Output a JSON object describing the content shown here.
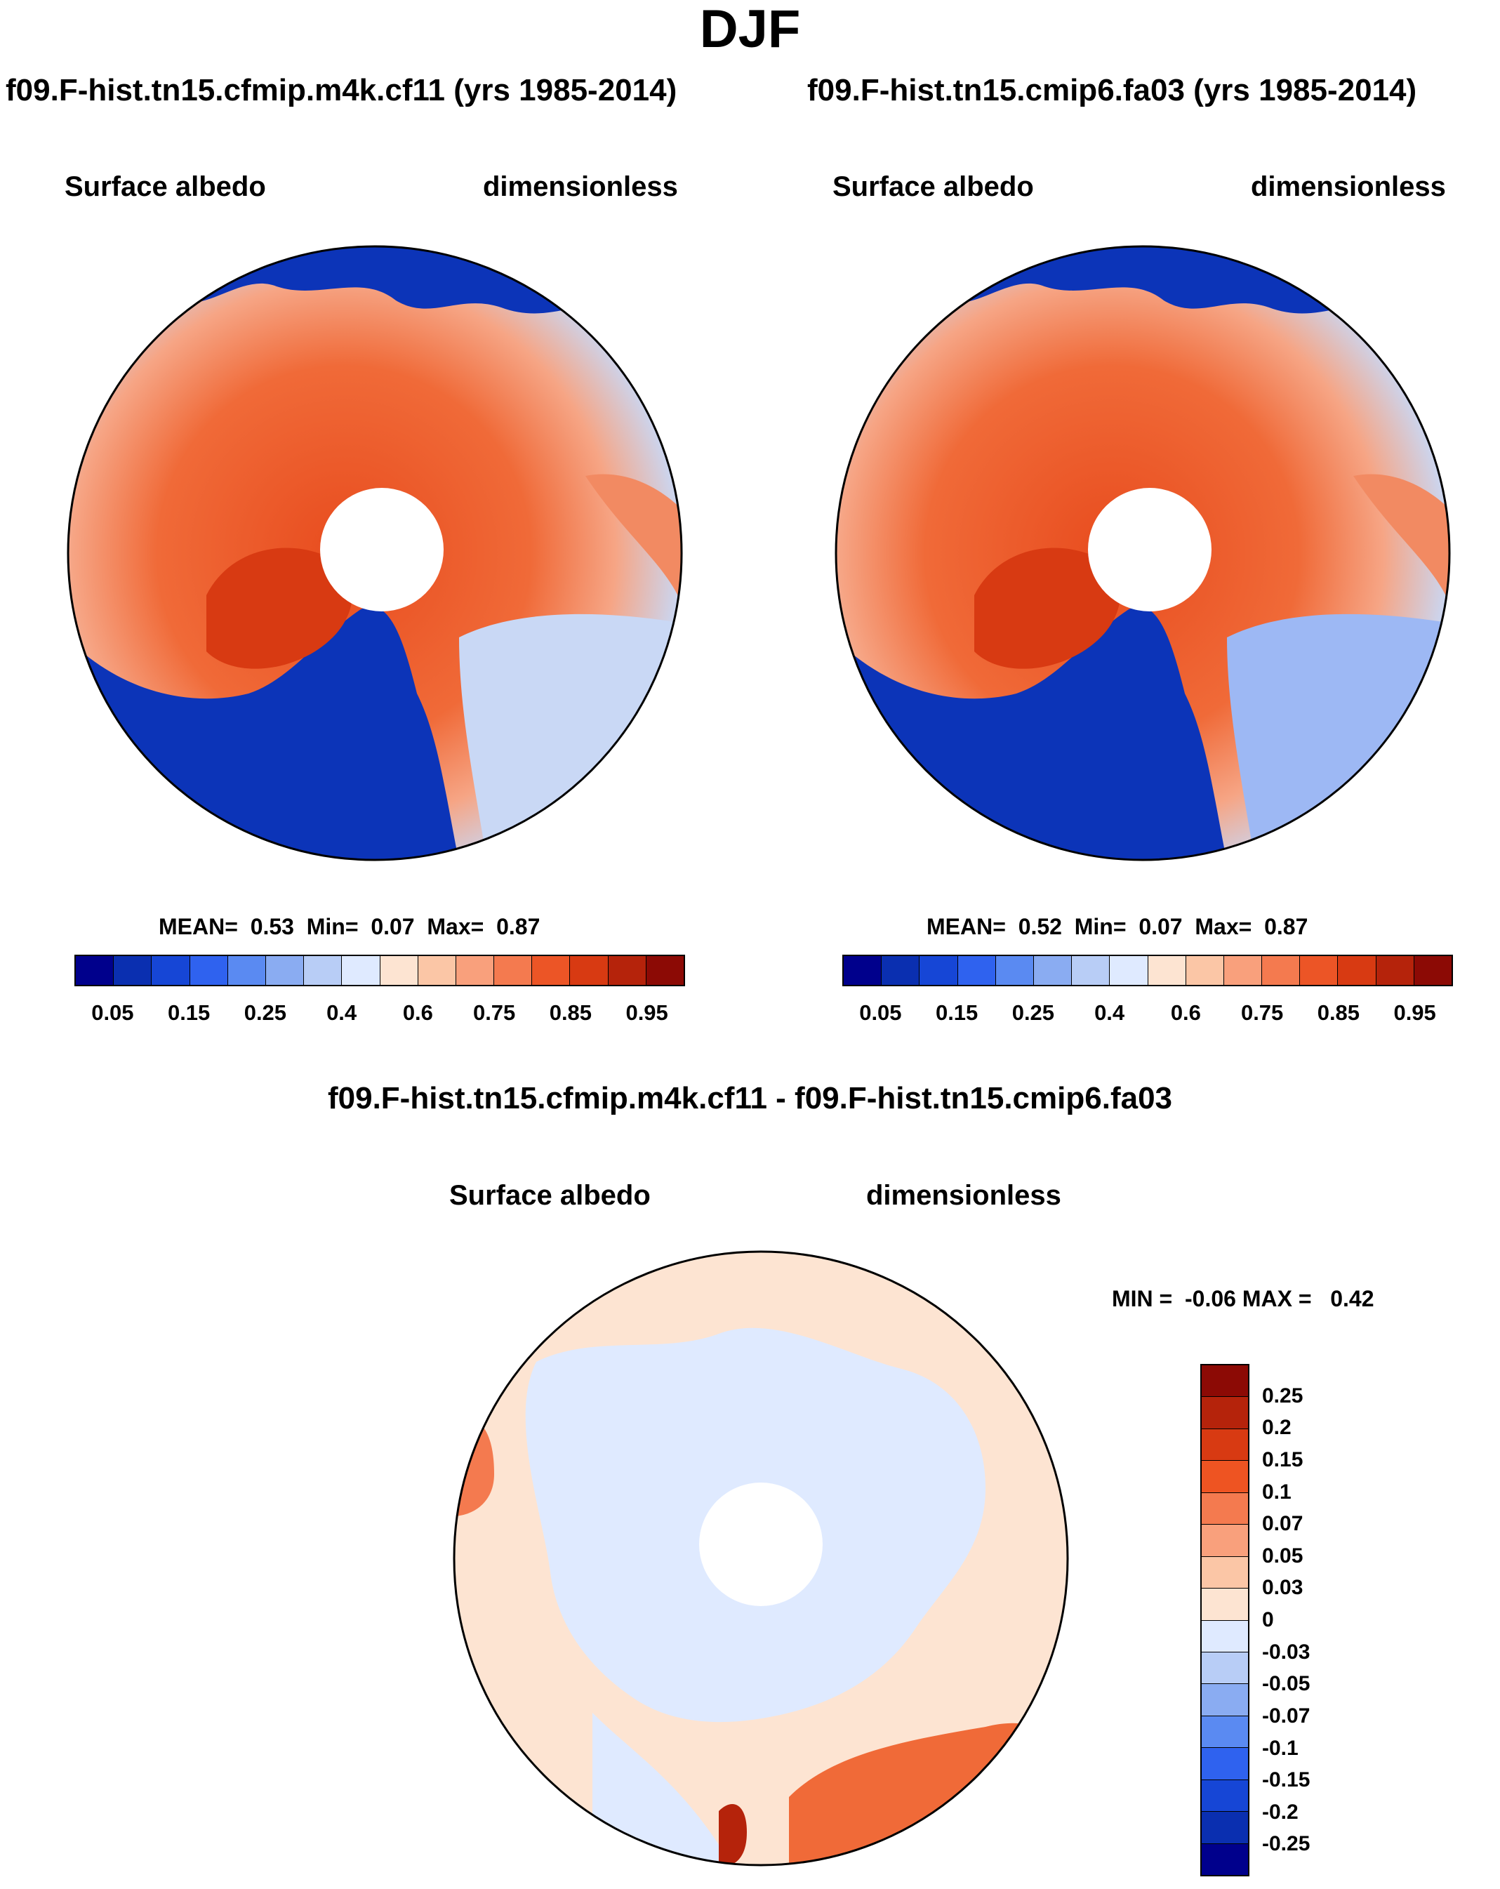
{
  "figure": {
    "title": "DJF"
  },
  "panels": [
    {
      "title": "f09.F-hist.tn15.cfmip.m4k.cf11 (yrs 1985-2014)",
      "left_label": "Surface albedo",
      "right_label": "dimensionless",
      "stats": "MEAN=  0.53  Min=  0.07  Max=  0.87"
    },
    {
      "title": "f09.F-hist.tn15.cmip6.fa03 (yrs 1985-2014)",
      "left_label": "Surface albedo",
      "right_label": "dimensionless",
      "stats": "MEAN=  0.52  Min=  0.07  Max=  0.87"
    },
    {
      "title": "f09.F-hist.tn15.cfmip.m4k.cf11 - f09.F-hist.tn15.cmip6.fa03",
      "left_label": "Surface albedo",
      "right_label": "dimensionless",
      "stats": "MIN =  -0.06 MAX =   0.42"
    }
  ],
  "colorbars": {
    "abs_colors": [
      "#00008c",
      "#0a2fb0",
      "#1646d6",
      "#2f62ef",
      "#5a8af2",
      "#8aacf2",
      "#b8cdf6",
      "#dfeaff",
      "#fde4d2",
      "#fbc6a6",
      "#f9a07c",
      "#f47a4f",
      "#ec5526",
      "#d83a12",
      "#b5230b",
      "#8c0a05"
    ],
    "abs_ticks": [
      "0.05",
      "0.15",
      "0.25",
      "0.4",
      "0.6",
      "0.75",
      "0.85",
      "0.95"
    ],
    "diff_colors": [
      "#8c0a05",
      "#b5230b",
      "#d83a12",
      "#ee5422",
      "#f47a4f",
      "#f9a07c",
      "#fbc6a6",
      "#fde4d2",
      "#dfeaff",
      "#b8cdf6",
      "#8aacf2",
      "#5a8af2",
      "#2f62ef",
      "#1646d6",
      "#0a2fb0",
      "#00008c"
    ],
    "diff_ticks": [
      "0.25",
      "0.2",
      "0.15",
      "0.1",
      "0.07",
      "0.05",
      "0.03",
      "0",
      "-0.03",
      "-0.05",
      "-0.07",
      "-0.1",
      "-0.15",
      "-0.2",
      "-0.25"
    ]
  },
  "chart_data": [
    {
      "type": "heatmap",
      "title": "f09.F-hist.tn15.cfmip.m4k.cf11 (yrs 1985-2014)",
      "projection": "north-polar-stereographic",
      "variable": "Surface albedo",
      "units": "dimensionless",
      "season": "DJF",
      "mean": 0.53,
      "min": 0.07,
      "max": 0.87,
      "levels": [
        0.05,
        0.1,
        0.15,
        0.2,
        0.25,
        0.3,
        0.4,
        0.5,
        0.6,
        0.7,
        0.75,
        0.8,
        0.85,
        0.9,
        0.95
      ]
    },
    {
      "type": "heatmap",
      "title": "f09.F-hist.tn15.cmip6.fa03 (yrs 1985-2014)",
      "projection": "north-polar-stereographic",
      "variable": "Surface albedo",
      "units": "dimensionless",
      "season": "DJF",
      "mean": 0.52,
      "min": 0.07,
      "max": 0.87,
      "levels": [
        0.05,
        0.1,
        0.15,
        0.2,
        0.25,
        0.3,
        0.4,
        0.5,
        0.6,
        0.7,
        0.75,
        0.8,
        0.85,
        0.9,
        0.95
      ]
    },
    {
      "type": "heatmap",
      "title": "f09.F-hist.tn15.cfmip.m4k.cf11 - f09.F-hist.tn15.cmip6.fa03",
      "projection": "north-polar-stereographic",
      "variable": "Surface albedo",
      "units": "dimensionless",
      "min": -0.06,
      "max": 0.42,
      "levels": [
        0.25,
        0.2,
        0.15,
        0.1,
        0.07,
        0.05,
        0.03,
        0,
        -0.03,
        -0.05,
        -0.07,
        -0.1,
        -0.15,
        -0.2,
        -0.25
      ]
    }
  ]
}
